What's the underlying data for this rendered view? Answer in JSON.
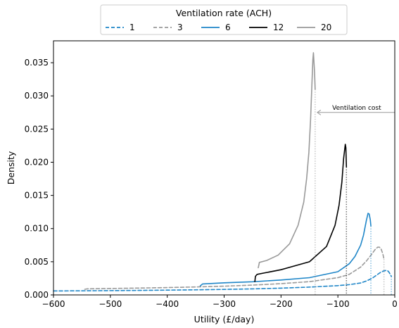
{
  "chart_data": {
    "type": "line",
    "xlabel": "Utility (£/day)",
    "ylabel": "Density",
    "xlim": [
      -600,
      0
    ],
    "ylim": [
      0,
      0.0383
    ],
    "xticks": [
      -600,
      -500,
      -400,
      -300,
      -200,
      -100,
      0
    ],
    "xtick_labels": [
      "−600",
      "−500",
      "−400",
      "−300",
      "−200",
      "−100",
      "0"
    ],
    "yticks": [
      0,
      0.005,
      0.01,
      0.015,
      0.02,
      0.025,
      0.03,
      0.035
    ],
    "ytick_labels": [
      "0.000",
      "0.005",
      "0.010",
      "0.015",
      "0.020",
      "0.025",
      "0.030",
      "0.035"
    ],
    "grid": false,
    "legend": {
      "title": "Ventilation rate (ACH)",
      "placement": "top-center-outside"
    },
    "annotation": {
      "text": "Ventilation cost",
      "arrow_from": [
        0,
        0.0275
      ],
      "arrow_to": [
        -140,
        0.0275
      ],
      "color": "#999999"
    },
    "series": [
      {
        "name": "1",
        "color": "#1f86c8",
        "dash": "dashed",
        "x": [
          -600,
          -550,
          -500,
          -450,
          -400,
          -350,
          -300,
          -250,
          -200,
          -150,
          -100,
          -80,
          -60,
          -50,
          -40,
          -30,
          -25,
          -20,
          -15,
          -12,
          -10,
          -8,
          -6
        ],
        "y": [
          0.0006,
          0.00062,
          0.00065,
          0.00068,
          0.00072,
          0.00077,
          0.00083,
          0.00091,
          0.00102,
          0.00118,
          0.0014,
          0.00155,
          0.0018,
          0.0021,
          0.0025,
          0.0031,
          0.0034,
          0.0036,
          0.0037,
          0.0036,
          0.0034,
          0.0031,
          0.0028
        ],
        "vline": {
          "x": -6,
          "y": 0.0028
        }
      },
      {
        "name": "3",
        "color": "#999999",
        "dash": "dashed",
        "x": [
          -545,
          -540,
          -500,
          -450,
          -400,
          -350,
          -300,
          -250,
          -200,
          -150,
          -100,
          -80,
          -60,
          -50,
          -40,
          -35,
          -30,
          -27,
          -24,
          -21,
          -19
        ],
        "y": [
          0.00085,
          0.00092,
          0.00097,
          0.00103,
          0.00111,
          0.0012,
          0.00132,
          0.00148,
          0.0017,
          0.002,
          0.0026,
          0.0031,
          0.0042,
          0.0051,
          0.0062,
          0.0068,
          0.0072,
          0.0072,
          0.0069,
          0.0062,
          0.0054
        ],
        "vline": {
          "x": -19,
          "y": 0.0054
        }
      },
      {
        "name": "6",
        "color": "#1f86c8",
        "dash": "solid",
        "x": [
          -342,
          -338,
          -300,
          -250,
          -200,
          -150,
          -100,
          -80,
          -70,
          -60,
          -55,
          -50,
          -47,
          -45,
          -43,
          -42
        ],
        "y": [
          0.00135,
          0.00165,
          0.00182,
          0.00198,
          0.00225,
          0.0026,
          0.0035,
          0.0047,
          0.0058,
          0.0075,
          0.009,
          0.0112,
          0.0123,
          0.0122,
          0.0113,
          0.0104
        ],
        "vline": {
          "x": -42,
          "y": 0.0104
        }
      },
      {
        "name": "12",
        "color": "#000000",
        "dash": "solid",
        "x": [
          -246,
          -245,
          -242,
          -230,
          -200,
          -150,
          -120,
          -105,
          -98,
          -93,
          -90,
          -87,
          -86,
          -85
        ],
        "y": [
          0.002,
          0.0028,
          0.0031,
          0.0033,
          0.0038,
          0.005,
          0.0073,
          0.0105,
          0.0135,
          0.017,
          0.0205,
          0.0227,
          0.0222,
          0.0193
        ],
        "vline": {
          "x": -85,
          "y": 0.0193
        }
      },
      {
        "name": "20",
        "color": "#999999",
        "dash": "solid",
        "x": [
          -240,
          -238,
          -225,
          -205,
          -185,
          -170,
          -160,
          -155,
          -151,
          -148,
          -146,
          -144,
          -143,
          -141,
          -140
        ],
        "y": [
          0.0041,
          0.0049,
          0.0052,
          0.006,
          0.0077,
          0.0105,
          0.014,
          0.0175,
          0.0215,
          0.0265,
          0.031,
          0.0355,
          0.0365,
          0.0335,
          0.031
        ],
        "vline": {
          "x": -140,
          "y": 0.031
        }
      }
    ]
  }
}
